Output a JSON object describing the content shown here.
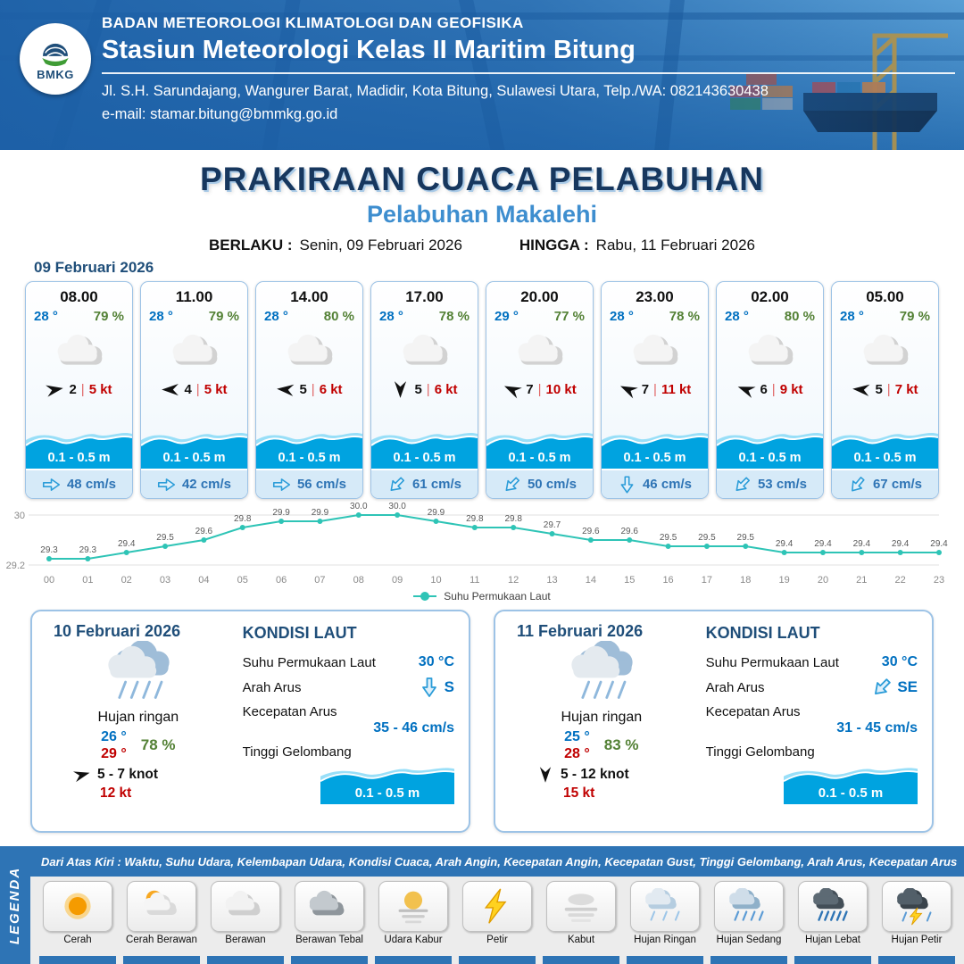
{
  "colors": {
    "accent_blue": "#2e74b5",
    "temp_blue": "#0070c0",
    "humidity_green": "#538135",
    "gust_red": "#c00000",
    "wave_blue": "#00a3e0",
    "sst_line": "#2ec4b6"
  },
  "header": {
    "logo_text": "BMKG",
    "agency": "BADAN METEOROLOGI KLIMATOLOGI DAN GEOFISIKA",
    "station": "Stasiun Meteorologi Kelas II Maritim Bitung",
    "address": "Jl. S.H. Sarundajang, Wangurer Barat, Madidir, Kota Bitung, Sulawesi Utara, Telp./WA: 082143630438",
    "email": "e-mail: stamar.bitung@bmmkg.go.id"
  },
  "title": {
    "main": "PRAKIRAAN CUACA PELABUHAN",
    "subtitle": "Pelabuhan Makalehi",
    "valid_label": "BERLAKU :",
    "valid_value": "Senin, 09 Februari 2026",
    "until_label": "HINGGA :",
    "until_value": "Rabu, 11 Februari 2026"
  },
  "hourly": {
    "date": "09 Februari 2026",
    "sep": "|",
    "cards": [
      {
        "time": "08.00",
        "temp": "28 °",
        "humidity": "79 %",
        "condition": "Berawan",
        "wind_speed": "2",
        "gust": "5 kt",
        "wind_deg": -10,
        "wave": "0.1 - 0.5 m",
        "current": "48 cm/s",
        "current_deg": 0
      },
      {
        "time": "11.00",
        "temp": "28 °",
        "humidity": "79 %",
        "condition": "Berawan",
        "wind_speed": "4",
        "gust": "5 kt",
        "wind_deg": 180,
        "wave": "0.1 - 0.5 m",
        "current": "42 cm/s",
        "current_deg": 0
      },
      {
        "time": "14.00",
        "temp": "28 °",
        "humidity": "80 %",
        "condition": "Berawan",
        "wind_speed": "5",
        "gust": "6 kt",
        "wind_deg": 185,
        "wave": "0.1 - 0.5 m",
        "current": "56 cm/s",
        "current_deg": 0
      },
      {
        "time": "17.00",
        "temp": "28 °",
        "humidity": "78 %",
        "condition": "Berawan",
        "wind_speed": "5",
        "gust": "6 kt",
        "wind_deg": 90,
        "wave": "0.1 - 0.5 m",
        "current": "61 cm/s",
        "current_deg": 135
      },
      {
        "time": "20.00",
        "temp": "29 °",
        "humidity": "77 %",
        "condition": "Berawan",
        "wind_speed": "7",
        "gust": "10 kt",
        "wind_deg": 205,
        "wave": "0.1 - 0.5 m",
        "current": "50 cm/s",
        "current_deg": 135
      },
      {
        "time": "23.00",
        "temp": "28 °",
        "humidity": "78 %",
        "condition": "Berawan",
        "wind_speed": "7",
        "gust": "11 kt",
        "wind_deg": 205,
        "wave": "0.1 - 0.5 m",
        "current": "46 cm/s",
        "current_deg": 90
      },
      {
        "time": "02.00",
        "temp": "28 °",
        "humidity": "80 %",
        "condition": "Berawan",
        "wind_speed": "6",
        "gust": "9 kt",
        "wind_deg": 200,
        "wave": "0.1 - 0.5 m",
        "current": "53 cm/s",
        "current_deg": 135
      },
      {
        "time": "05.00",
        "temp": "28 °",
        "humidity": "79 %",
        "condition": "Berawan",
        "wind_speed": "5",
        "gust": "7 kt",
        "wind_deg": 185,
        "wave": "0.1 - 0.5 m",
        "current": "67 cm/s",
        "current_deg": 130
      }
    ]
  },
  "chart_data": {
    "type": "line",
    "title": "Suhu Permukaan Laut",
    "legend": "Suhu Permukaan Laut",
    "legend_position": "bottom",
    "grid": true,
    "x": [
      "00",
      "01",
      "02",
      "03",
      "04",
      "05",
      "06",
      "07",
      "08",
      "09",
      "10",
      "11",
      "12",
      "13",
      "14",
      "15",
      "16",
      "17",
      "18",
      "19",
      "20",
      "21",
      "22",
      "23"
    ],
    "values": [
      29.3,
      29.3,
      29.4,
      29.5,
      29.6,
      29.8,
      29.9,
      29.9,
      30.0,
      30.0,
      29.9,
      29.8,
      29.8,
      29.7,
      29.6,
      29.6,
      29.5,
      29.5,
      29.5,
      29.4,
      29.4,
      29.4,
      29.4,
      29.4
    ],
    "ylim": [
      29.2,
      30.0
    ],
    "ymin_label": "29.2",
    "ymax_label": "30",
    "line_color": "#2ec4b6"
  },
  "sea_labels": {
    "title": "KONDISI LAUT",
    "sst": "Suhu Permukaan Laut",
    "current_dir": "Arah Arus",
    "current_speed": "Kecepatan Arus",
    "wave": "Tinggi Gelombang"
  },
  "daily": [
    {
      "date": "10 Februari 2026",
      "condition": "Hujan ringan",
      "temp_min": "26 °",
      "temp_max": "29 °",
      "humidity": "78 %",
      "wind": "5 - 7 knot",
      "wind_deg": -15,
      "gust": "12 kt",
      "sst": "30 °C",
      "current_dir": "S",
      "current_dir_deg": 90,
      "current_speed": "35 - 46 cm/s",
      "wave": "0.1 - 0.5 m"
    },
    {
      "date": "11 Februari 2026",
      "condition": "Hujan ringan",
      "temp_min": "25 °",
      "temp_max": "28 °",
      "humidity": "83 %",
      "wind": "5 - 12 knot",
      "wind_deg": 90,
      "gust": "15 kt",
      "sst": "30 °C",
      "current_dir": "SE",
      "current_dir_deg": 135,
      "current_speed": "31 - 45 cm/s",
      "wave": "0.1 - 0.5 m"
    }
  ],
  "legend": {
    "note": "Dari Atas Kiri : Waktu, Suhu Udara, Kelembapan Udara, Kondisi Cuaca, Arah Angin, Kecepatan Angin, Kecepatan Gust, Tinggi Gelombang, Arah Arus, Kecepatan Arus",
    "side_label": "LEGENDA",
    "items": [
      {
        "label": "Cerah",
        "icon": "sun-icon"
      },
      {
        "label": "Cerah Berawan",
        "icon": "sun-cloud-icon"
      },
      {
        "label": "Berawan",
        "icon": "cloud-icon"
      },
      {
        "label": "Berawan Tebal",
        "icon": "thick-cloud-icon"
      },
      {
        "label": "Udara Kabur",
        "icon": "haze-icon"
      },
      {
        "label": "Petir",
        "icon": "lightning-icon"
      },
      {
        "label": "Kabut",
        "icon": "fog-icon"
      },
      {
        "label": "Hujan Ringan",
        "icon": "light-rain-icon"
      },
      {
        "label": "Hujan Sedang",
        "icon": "moderate-rain-icon"
      },
      {
        "label": "Hujan Lebat",
        "icon": "heavy-rain-icon"
      },
      {
        "label": "Hujan Petir",
        "icon": "thunderstorm-icon"
      }
    ]
  }
}
